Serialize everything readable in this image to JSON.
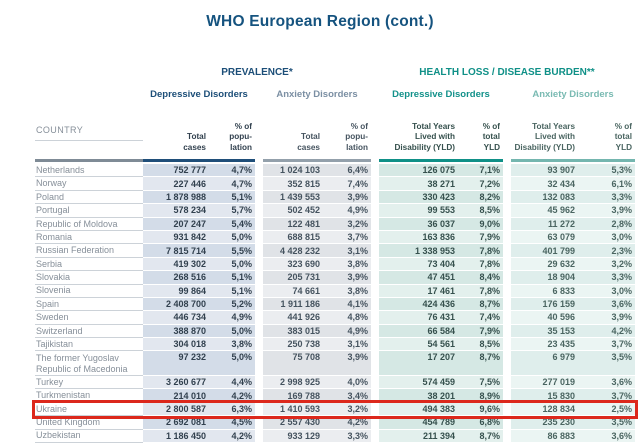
{
  "page": {
    "title": "WHO European Region (cont.)"
  },
  "table": {
    "sections": {
      "prevalence": "PREVALENCE*",
      "health_loss": "HEALTH LOSS / DISEASE BURDEN**"
    },
    "subsections": {
      "prev_depressive": "Depressive Disorders",
      "prev_anxiety": "Anxiety Disorders",
      "yld_depressive": "Depressive Disorders",
      "yld_anxiety": "Anxiety Disorders"
    },
    "column_headers": {
      "country": "COUNTRY",
      "total_cases": [
        "Total",
        "cases"
      ],
      "pct_population": [
        "% of",
        "popu-",
        "lation"
      ],
      "total_yld": [
        "Total Years",
        "Lived with",
        "Disability (YLD)"
      ],
      "pct_total_yld": [
        "% of",
        "total",
        "YLD"
      ]
    },
    "highlight_color": "#dc281c",
    "rows": [
      {
        "country": "Netherlands",
        "country2": "",
        "dep_cases": "752 777",
        "dep_pct": "4,7%",
        "anx_cases": "1 024 103",
        "anx_pct": "6,4%",
        "dep_yld": "126 075",
        "dep_yld_pct": "7,1%",
        "anx_yld": "93 907",
        "anx_yld_pct": "5,3%",
        "highlight": false
      },
      {
        "country": "Norway",
        "country2": "",
        "dep_cases": "227 446",
        "dep_pct": "4,7%",
        "anx_cases": "352 815",
        "anx_pct": "7,4%",
        "dep_yld": "38 271",
        "dep_yld_pct": "7,2%",
        "anx_yld": "32 434",
        "anx_yld_pct": "6,1%",
        "highlight": false
      },
      {
        "country": "Poland",
        "country2": "",
        "dep_cases": "1 878 988",
        "dep_pct": "5,1%",
        "anx_cases": "1 439 553",
        "anx_pct": "3,9%",
        "dep_yld": "330 423",
        "dep_yld_pct": "8,2%",
        "anx_yld": "132 083",
        "anx_yld_pct": "3,3%",
        "highlight": false
      },
      {
        "country": "Portugal",
        "country2": "",
        "dep_cases": "578 234",
        "dep_pct": "5,7%",
        "anx_cases": "502 452",
        "anx_pct": "4,9%",
        "dep_yld": "99 553",
        "dep_yld_pct": "8,5%",
        "anx_yld": "45 962",
        "anx_yld_pct": "3,9%",
        "highlight": false
      },
      {
        "country": "Republic of Moldova",
        "country2": "",
        "dep_cases": "207 247",
        "dep_pct": "5,4%",
        "anx_cases": "122 481",
        "anx_pct": "3,2%",
        "dep_yld": "36 037",
        "dep_yld_pct": "9,0%",
        "anx_yld": "11 272",
        "anx_yld_pct": "2,8%",
        "highlight": false
      },
      {
        "country": "Romania",
        "country2": "",
        "dep_cases": "931 842",
        "dep_pct": "5,0%",
        "anx_cases": "688 815",
        "anx_pct": "3,7%",
        "dep_yld": "163 836",
        "dep_yld_pct": "7,9%",
        "anx_yld": "63 079",
        "anx_yld_pct": "3,0%",
        "highlight": false
      },
      {
        "country": "Russian Federation",
        "country2": "",
        "dep_cases": "7 815 714",
        "dep_pct": "5,5%",
        "anx_cases": "4 428 232",
        "anx_pct": "3,1%",
        "dep_yld": "1 338 953",
        "dep_yld_pct": "7,8%",
        "anx_yld": "401 799",
        "anx_yld_pct": "2,3%",
        "highlight": false
      },
      {
        "country": "Serbia",
        "country2": "",
        "dep_cases": "419 302",
        "dep_pct": "5,0%",
        "anx_cases": "323 690",
        "anx_pct": "3,8%",
        "dep_yld": "73 404",
        "dep_yld_pct": "7,8%",
        "anx_yld": "29 632",
        "anx_yld_pct": "3,2%",
        "highlight": false
      },
      {
        "country": "Slovakia",
        "country2": "",
        "dep_cases": "268 516",
        "dep_pct": "5,1%",
        "anx_cases": "205 731",
        "anx_pct": "3,9%",
        "dep_yld": "47 451",
        "dep_yld_pct": "8,4%",
        "anx_yld": "18 904",
        "anx_yld_pct": "3,3%",
        "highlight": false
      },
      {
        "country": "Slovenia",
        "country2": "",
        "dep_cases": "99 864",
        "dep_pct": "5,1%",
        "anx_cases": "74 661",
        "anx_pct": "3,8%",
        "dep_yld": "17 461",
        "dep_yld_pct": "7,8%",
        "anx_yld": "6 833",
        "anx_yld_pct": "3,0%",
        "highlight": false
      },
      {
        "country": "Spain",
        "country2": "",
        "dep_cases": "2 408 700",
        "dep_pct": "5,2%",
        "anx_cases": "1 911 186",
        "anx_pct": "4,1%",
        "dep_yld": "424 436",
        "dep_yld_pct": "8,7%",
        "anx_yld": "176 159",
        "anx_yld_pct": "3,6%",
        "highlight": false
      },
      {
        "country": "Sweden",
        "country2": "",
        "dep_cases": "446 734",
        "dep_pct": "4,9%",
        "anx_cases": "441 926",
        "anx_pct": "4,8%",
        "dep_yld": "76 431",
        "dep_yld_pct": "7,4%",
        "anx_yld": "40 596",
        "anx_yld_pct": "3,9%",
        "highlight": false
      },
      {
        "country": "Switzerland",
        "country2": "",
        "dep_cases": "388 870",
        "dep_pct": "5,0%",
        "anx_cases": "383 015",
        "anx_pct": "4,9%",
        "dep_yld": "66 584",
        "dep_yld_pct": "7,9%",
        "anx_yld": "35 153",
        "anx_yld_pct": "4,2%",
        "highlight": false
      },
      {
        "country": "Tajikistan",
        "country2": "",
        "dep_cases": "304 018",
        "dep_pct": "3,8%",
        "anx_cases": "250 738",
        "anx_pct": "3,1%",
        "dep_yld": "54 561",
        "dep_yld_pct": "8,5%",
        "anx_yld": "23 435",
        "anx_yld_pct": "3,7%",
        "highlight": false
      },
      {
        "country": "The former Yugoslav",
        "country2": "Republic of Macedonia",
        "dep_cases": "97 232",
        "dep_pct": "5,0%",
        "anx_cases": "75 708",
        "anx_pct": "3,9%",
        "dep_yld": "17 207",
        "dep_yld_pct": "8,7%",
        "anx_yld": "6 979",
        "anx_yld_pct": "3,5%",
        "highlight": false
      },
      {
        "country": "Turkey",
        "country2": "",
        "dep_cases": "3 260 677",
        "dep_pct": "4,4%",
        "anx_cases": "2 998 925",
        "anx_pct": "4,0%",
        "dep_yld": "574 459",
        "dep_yld_pct": "7,5%",
        "anx_yld": "277 019",
        "anx_yld_pct": "3,6%",
        "highlight": false
      },
      {
        "country": "Turkmenistan",
        "country2": "",
        "dep_cases": "214 010",
        "dep_pct": "4,2%",
        "anx_cases": "169 788",
        "anx_pct": "3,4%",
        "dep_yld": "38 201",
        "dep_yld_pct": "8,9%",
        "anx_yld": "15 830",
        "anx_yld_pct": "3,7%",
        "highlight": false
      },
      {
        "country": "Ukraine",
        "country2": "",
        "dep_cases": "2 800 587",
        "dep_pct": "6,3%",
        "anx_cases": "1 410 593",
        "anx_pct": "3,2%",
        "dep_yld": "494 383",
        "dep_yld_pct": "9,6%",
        "anx_yld": "128 834",
        "anx_yld_pct": "2,5%",
        "highlight": true
      },
      {
        "country": "United Kingdom",
        "country2": "",
        "dep_cases": "2 692 081",
        "dep_pct": "4,5%",
        "anx_cases": "2 557 430",
        "anx_pct": "4,2%",
        "dep_yld": "454 789",
        "dep_yld_pct": "6,8%",
        "anx_yld": "235 230",
        "anx_yld_pct": "3,5%",
        "highlight": false
      },
      {
        "country": "Uzbekistan",
        "country2": "",
        "dep_cases": "1 186 450",
        "dep_pct": "4,2%",
        "anx_cases": "933 129",
        "anx_pct": "3,3%",
        "dep_yld": "211 394",
        "dep_yld_pct": "8,7%",
        "anx_yld": "86 883",
        "anx_yld_pct": "3,6%",
        "highlight": false
      }
    ]
  }
}
